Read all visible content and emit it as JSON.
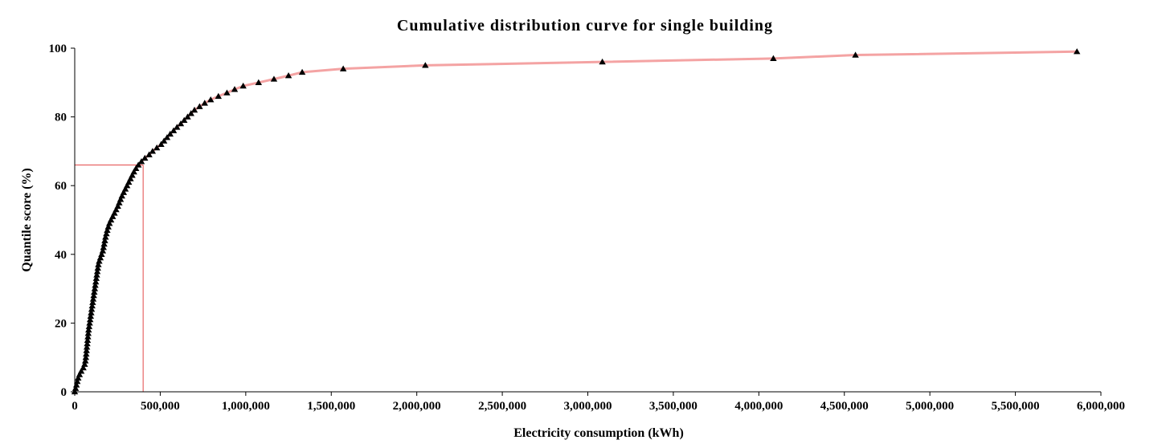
{
  "chart_data": {
    "type": "scatter",
    "title": "Cumulative distribution curve for single building",
    "xlabel": "Electricity consumption (kWh)",
    "ylabel": "Quantile score (%)",
    "xlim": [
      0,
      6000000
    ],
    "ylim": [
      0,
      100
    ],
    "x_ticks": [
      0,
      500000,
      1000000,
      1500000,
      2000000,
      2500000,
      3000000,
      3500000,
      4000000,
      4500000,
      5000000,
      5500000,
      6000000
    ],
    "x_tick_labels": [
      "0",
      "500,000",
      "1,000,000",
      "1,500,000",
      "2,000,000",
      "2,500,000",
      "3,000,000",
      "3,500,000",
      "4,000,000",
      "4,500,000",
      "5,000,000",
      "5,500,000",
      "6,000,000"
    ],
    "y_ticks": [
      0,
      20,
      40,
      60,
      80,
      100
    ],
    "y_tick_labels": [
      "0",
      "20",
      "40",
      "60",
      "80",
      "100"
    ],
    "grid": false,
    "legend": "none",
    "colors": {
      "markers": "#000000",
      "curve": "#f4a3a3",
      "reference_lines": "#e34a4a",
      "axis": "#000000"
    },
    "marker_shape": "triangle",
    "series": [
      {
        "points": [
          [
            0,
            0
          ],
          [
            5000,
            1
          ],
          [
            10000,
            2
          ],
          [
            15000,
            3
          ],
          [
            20000,
            4
          ],
          [
            28000,
            5
          ],
          [
            38000,
            6
          ],
          [
            50000,
            7
          ],
          [
            58000,
            8
          ],
          [
            62000,
            9
          ],
          [
            65000,
            10
          ],
          [
            67000,
            11
          ],
          [
            69000,
            12
          ],
          [
            71000,
            13
          ],
          [
            73000,
            14
          ],
          [
            75000,
            15
          ],
          [
            77000,
            16
          ],
          [
            79000,
            17
          ],
          [
            81000,
            18
          ],
          [
            84000,
            19
          ],
          [
            87000,
            20
          ],
          [
            90000,
            21
          ],
          [
            93000,
            22
          ],
          [
            96000,
            23
          ],
          [
            99000,
            24
          ],
          [
            102000,
            25
          ],
          [
            105000,
            26
          ],
          [
            108000,
            27
          ],
          [
            111000,
            28
          ],
          [
            114000,
            29
          ],
          [
            117000,
            30
          ],
          [
            120000,
            31
          ],
          [
            123000,
            32
          ],
          [
            126000,
            33
          ],
          [
            129000,
            34
          ],
          [
            132000,
            35
          ],
          [
            135000,
            36
          ],
          [
            138000,
            37
          ],
          [
            143000,
            38
          ],
          [
            150000,
            39
          ],
          [
            157000,
            40
          ],
          [
            164000,
            41
          ],
          [
            168000,
            42
          ],
          [
            172000,
            43
          ],
          [
            176000,
            44
          ],
          [
            180000,
            45
          ],
          [
            185000,
            46
          ],
          [
            190000,
            47
          ],
          [
            196000,
            48
          ],
          [
            203000,
            49
          ],
          [
            212000,
            50
          ],
          [
            222000,
            51
          ],
          [
            232000,
            52
          ],
          [
            242000,
            53
          ],
          [
            252000,
            54
          ],
          [
            260000,
            55
          ],
          [
            268000,
            56
          ],
          [
            276000,
            57
          ],
          [
            286000,
            58
          ],
          [
            296000,
            59
          ],
          [
            306000,
            60
          ],
          [
            316000,
            61
          ],
          [
            326000,
            62
          ],
          [
            336000,
            63
          ],
          [
            346000,
            64
          ],
          [
            358000,
            65
          ],
          [
            372000,
            66
          ],
          [
            390000,
            67
          ],
          [
            410000,
            68
          ],
          [
            435000,
            69
          ],
          [
            455000,
            70
          ],
          [
            480000,
            71
          ],
          [
            505000,
            72
          ],
          [
            522000,
            73
          ],
          [
            540000,
            74
          ],
          [
            558000,
            75
          ],
          [
            578000,
            76
          ],
          [
            598000,
            77
          ],
          [
            620000,
            78
          ],
          [
            640000,
            79
          ],
          [
            660000,
            80
          ],
          [
            680000,
            81
          ],
          [
            700000,
            82
          ],
          [
            730000,
            83
          ],
          [
            760000,
            84
          ],
          [
            795000,
            85
          ],
          [
            840000,
            86
          ],
          [
            890000,
            87
          ],
          [
            935000,
            88
          ],
          [
            985000,
            89
          ],
          [
            1075000,
            90
          ],
          [
            1165000,
            91
          ],
          [
            1250000,
            92
          ],
          [
            1330000,
            93
          ],
          [
            1570000,
            94
          ],
          [
            2050000,
            95
          ],
          [
            3085000,
            96
          ],
          [
            4085000,
            97
          ],
          [
            4565000,
            98
          ],
          [
            5860000,
            99
          ]
        ]
      }
    ],
    "reference_point": {
      "x": 400000,
      "y": 66
    }
  }
}
